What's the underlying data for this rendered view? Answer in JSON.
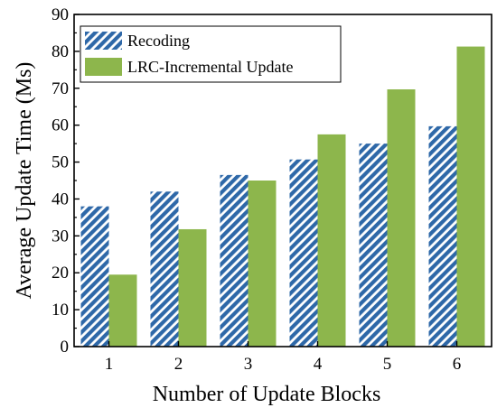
{
  "chart_data": {
    "type": "bar",
    "title": "",
    "xlabel": "Number of Update Blocks",
    "ylabel": "Average Update Time (Ms)",
    "categories": [
      "1",
      "2",
      "3",
      "4",
      "5",
      "6"
    ],
    "ylim": [
      0,
      90
    ],
    "yticks": [
      "0",
      "10",
      "20",
      "30",
      "40",
      "50",
      "60",
      "70",
      "80",
      "90"
    ],
    "grid": false,
    "legend_position": "top-left",
    "series": [
      {
        "name": "Recoding",
        "values": [
          38,
          42,
          46.5,
          50.7,
          55,
          59.7
        ],
        "color": "#2E68A8",
        "pattern": "diagonal-hatch"
      },
      {
        "name": "LRC-Incremental Update",
        "values": [
          19.5,
          31.8,
          45,
          57.5,
          69.7,
          81.3
        ],
        "color": "#8DB64C",
        "pattern": "solid"
      }
    ]
  }
}
